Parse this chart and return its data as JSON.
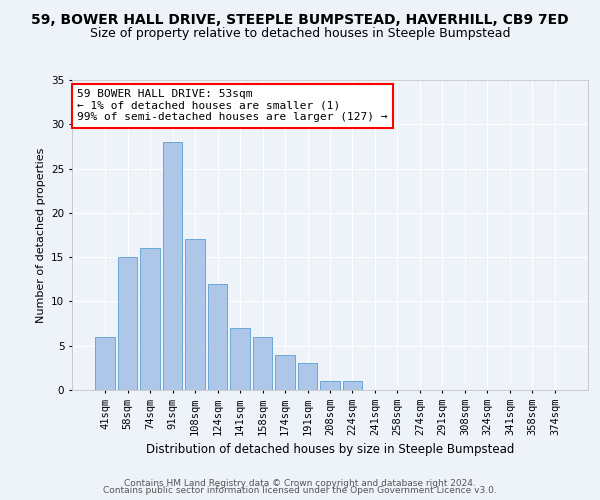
{
  "title": "59, BOWER HALL DRIVE, STEEPLE BUMPSTEAD, HAVERHILL, CB9 7ED",
  "subtitle": "Size of property relative to detached houses in Steeple Bumpstead",
  "xlabel": "Distribution of detached houses by size in Steeple Bumpstead",
  "ylabel": "Number of detached properties",
  "bins": [
    "41sqm",
    "58sqm",
    "74sqm",
    "91sqm",
    "108sqm",
    "124sqm",
    "141sqm",
    "158sqm",
    "174sqm",
    "191sqm",
    "208sqm",
    "224sqm",
    "241sqm",
    "258sqm",
    "274sqm",
    "291sqm",
    "308sqm",
    "324sqm",
    "341sqm",
    "358sqm",
    "374sqm"
  ],
  "values": [
    6,
    15,
    16,
    28,
    17,
    12,
    7,
    6,
    4,
    3,
    1,
    1,
    0,
    0,
    0,
    0,
    0,
    0,
    0,
    0,
    0
  ],
  "bar_color": "#aec6e8",
  "bar_edge_color": "#5a9fd4",
  "ylim": [
    0,
    35
  ],
  "yticks": [
    0,
    5,
    10,
    15,
    20,
    25,
    30,
    35
  ],
  "annotation_box_text": "59 BOWER HALL DRIVE: 53sqm\n← 1% of detached houses are smaller (1)\n99% of semi-detached houses are larger (127) →",
  "footer1": "Contains HM Land Registry data © Crown copyright and database right 2024.",
  "footer2": "Contains public sector information licensed under the Open Government Licence v3.0.",
  "bg_color": "#eef2f9",
  "grid_color": "#ffffff",
  "title_fontsize": 10,
  "subtitle_fontsize": 9,
  "xlabel_fontsize": 8.5,
  "ylabel_fontsize": 8,
  "tick_fontsize": 7.5,
  "annotation_fontsize": 8,
  "footer_fontsize": 6.5
}
